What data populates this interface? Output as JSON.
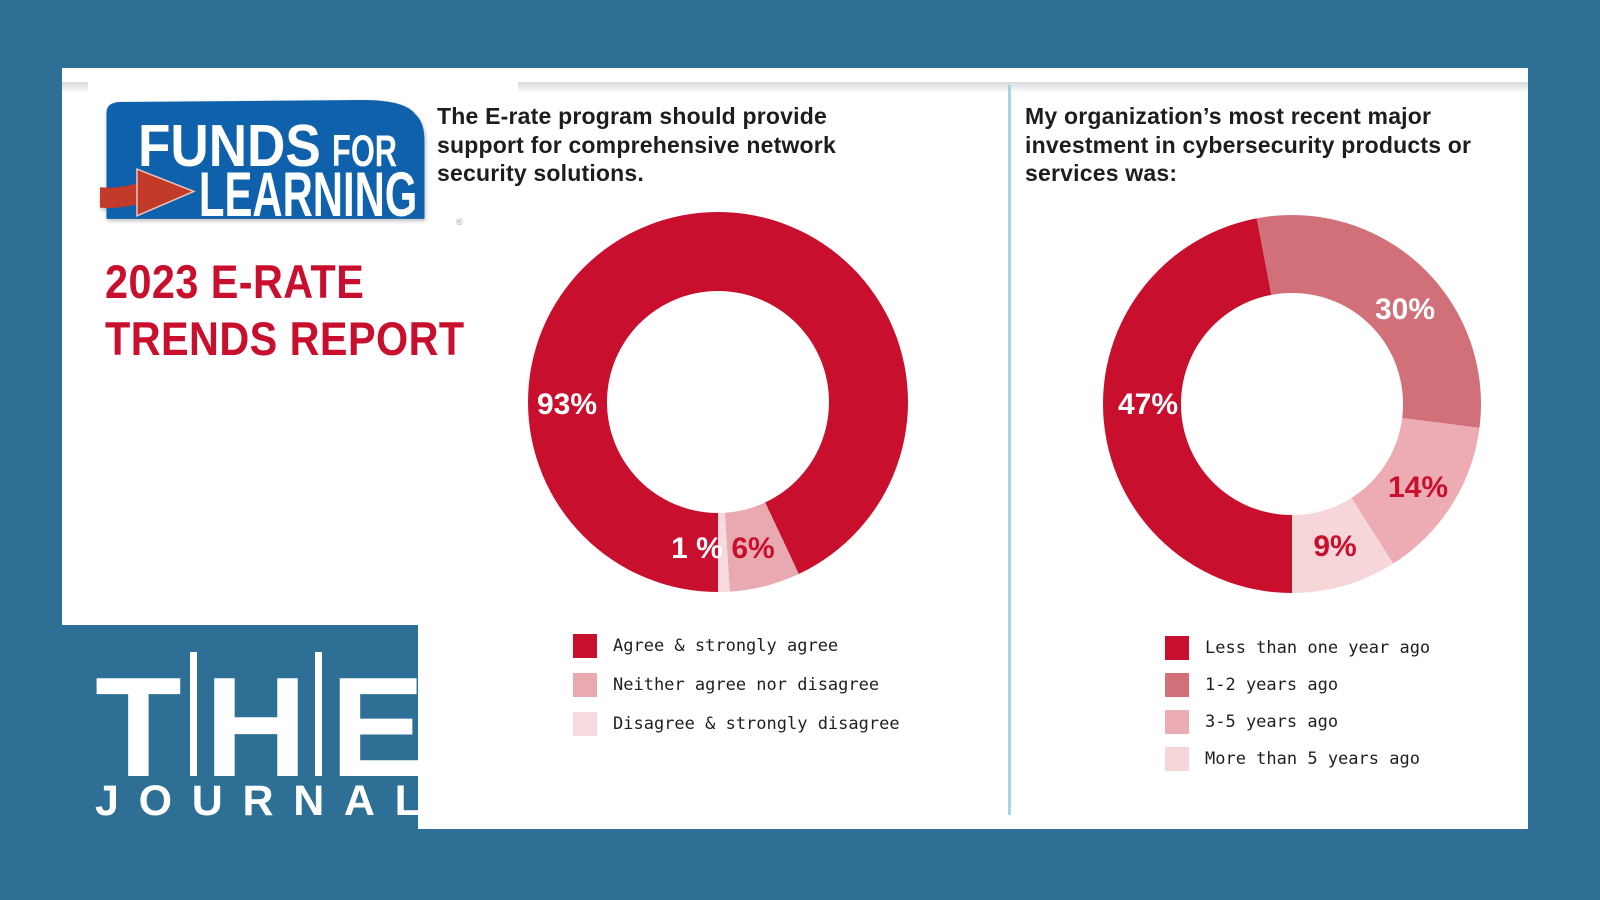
{
  "page": {
    "background_color": "#2e7095",
    "panel_color": "#ffffff",
    "divider_color": "#a5d6dd"
  },
  "branding": {
    "funds_for_learning": {
      "word1": "FUNDS",
      "word2": "FOR",
      "word3": "LEARNING",
      "registered_mark": "®",
      "box_color": "#1061ac",
      "arrow_color": "#c23b2a",
      "text_color": "#ffffff"
    },
    "report_title": {
      "line1": "2023 E-RATE",
      "line2": "TRENDS REPORT",
      "color": "#c8102e"
    },
    "the_journal": {
      "title": "THE",
      "subtitle": "JOURNAL",
      "color": "#ffffff"
    }
  },
  "chart_data": [
    {
      "type": "pie",
      "subtype": "donut",
      "title": "The E-rate program should provide support for comprehensive network security solutions.",
      "title_lines": [
        "The E-rate program should provide",
        "support for comprehensive network",
        "security solutions."
      ],
      "labels": [
        "Agree & strongly agree",
        "Neither agree nor disagree",
        "Disagree & strongly disagree"
      ],
      "values": [
        93,
        6,
        1
      ],
      "value_labels": [
        "93%",
        "6%",
        "1 %"
      ],
      "colors": [
        "#c8102e",
        "#e9a9b1",
        "#f7dadd"
      ],
      "hole_ratio": 0.585,
      "start_angle": "6-o-clock",
      "direction": "clockwise",
      "legend_position": "bottom"
    },
    {
      "type": "pie",
      "subtype": "donut",
      "title": "My organization’s most recent major investment in cybersecurity products or services was:",
      "title_lines": [
        "My organization’s most recent major",
        "investment in cybersecurity products or",
        "services was:"
      ],
      "labels": [
        "Less than one year ago",
        "1-2 years ago",
        "3-5 years ago",
        "More than 5 years ago"
      ],
      "values": [
        47,
        30,
        14,
        9
      ],
      "value_labels": [
        "47%",
        "30%",
        "14%",
        "9%"
      ],
      "colors": [
        "#c8102e",
        "#d2707a",
        "#edabb3",
        "#f7d6da"
      ],
      "hole_ratio": 0.585,
      "start_angle": "6-o-clock",
      "direction": "clockwise",
      "legend_position": "bottom"
    }
  ]
}
